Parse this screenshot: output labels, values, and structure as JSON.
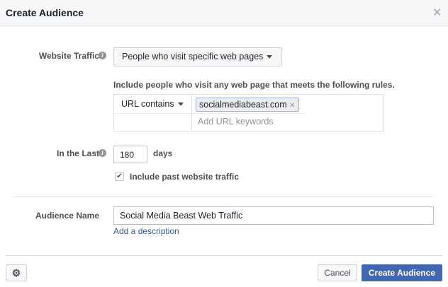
{
  "dialog": {
    "title": "Create Audience",
    "close_icon": "close-icon"
  },
  "website_traffic": {
    "label": "Website Traffic",
    "dropdown": "People who visit specific web pages"
  },
  "rules": {
    "description": "Include people who visit any web page that meets the following rules.",
    "condition": "URL contains",
    "token": "socialmediabeast.com",
    "keyword_placeholder": "Add URL keywords"
  },
  "in_the_last": {
    "label": "In the Last",
    "value": "180",
    "unit": "days",
    "include_past_label": "Include past website traffic",
    "include_past_checked": true
  },
  "audience_name": {
    "label": "Audience Name",
    "value": "Social Media Beast Web Traffic",
    "add_description": "Add a description"
  },
  "footer": {
    "cancel": "Cancel",
    "create": "Create Audience"
  },
  "colors": {
    "primary": "#4267b2",
    "link": "#365899"
  }
}
